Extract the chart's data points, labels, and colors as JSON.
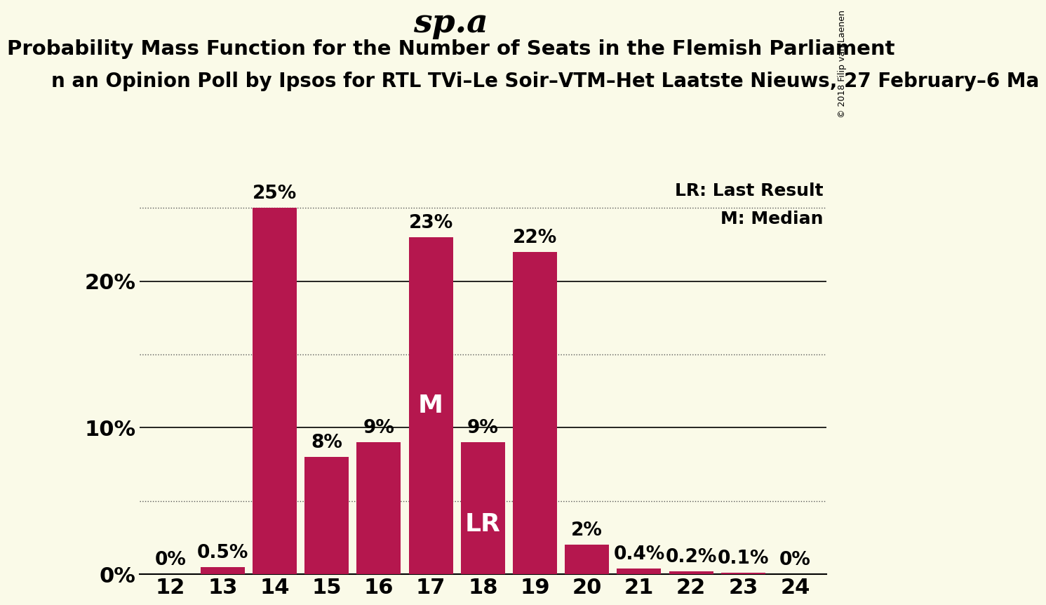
{
  "title": "sp.a",
  "subtitle": "Probability Mass Function for the Number of Seats in the Flemish Parliament",
  "subsubtitle": "n an Opinion Poll by Ipsos for RTL TVi–Le Soir–VTM–Het Laatste Nieuws, 27 February–6 Ma",
  "copyright": "© 2018 Filip van Laenen",
  "seats": [
    12,
    13,
    14,
    15,
    16,
    17,
    18,
    19,
    20,
    21,
    22,
    23,
    24
  ],
  "probabilities": [
    0.0,
    0.5,
    25.0,
    8.0,
    9.0,
    23.0,
    9.0,
    22.0,
    2.0,
    0.4,
    0.2,
    0.1,
    0.0
  ],
  "bar_color": "#b5174e",
  "background_color": "#fafae8",
  "median_seat": 17,
  "lr_seat": 18,
  "ylim": [
    0,
    27
  ],
  "yticks": [
    0,
    10,
    20
  ],
  "ytick_labels": [
    "0%",
    "10%",
    "20%"
  ],
  "dotted_lines": [
    5,
    15,
    25
  ],
  "solid_lines": [
    0,
    10,
    20
  ],
  "tick_fontsize": 22,
  "title_fontsize": 34,
  "subtitle_fontsize": 21,
  "subsubtitle_fontsize": 20,
  "bar_label_fontsize": 19,
  "inside_label_fontsize": 26,
  "legend_fontsize": 18,
  "copyright_fontsize": 9,
  "lr_legend": "LR: Last Result",
  "m_legend": "M: Median"
}
